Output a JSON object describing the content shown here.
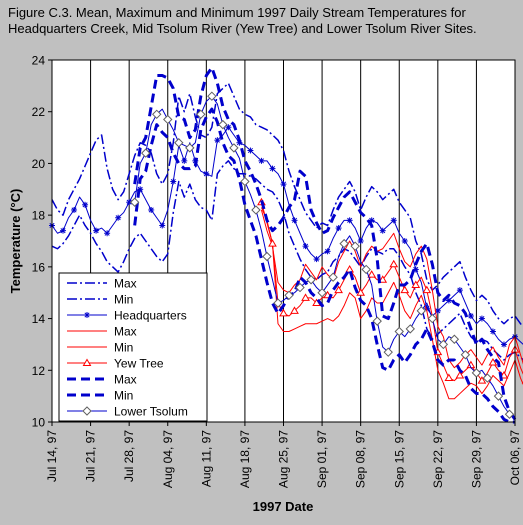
{
  "figure_title": "Figure C.3.  Mean, Maximum and Minimum 1997 Daily Stream Temperatures for Headquarters Creek, Mid Tsolum River (Yew Tree) and Lower Tsolum River Sites.",
  "chart_data": {
    "type": "line",
    "title": "Figure C.3.  Mean, Maximum and Minimum 1997 Daily Stream Temperatures for Headquarters Creek, Mid Tsolum River (Yew Tree) and Lower Tsolum River Sites.",
    "xlabel": "1997 Date",
    "ylabel": "Temperature (°C)",
    "x_tick_labels": [
      "Jul 14, 97",
      "Jul 21, 97",
      "Jul 28, 97",
      "Aug 04, 97",
      "Aug 11, 97",
      "Aug 18, 97",
      "Aug 25, 97",
      "Sep 01, 97",
      "Sep 08, 97",
      "Sep 15, 97",
      "Sep 22, 97",
      "Sep 29, 97",
      "Oct 06, 97"
    ],
    "y_ticks": [
      10,
      12,
      14,
      16,
      18,
      20,
      22,
      24
    ],
    "ylim": [
      10,
      24
    ],
    "xlim": [
      "Jul 14, 97",
      "Oct 06, 97"
    ],
    "grid": {
      "vertical": true,
      "horizontal": false
    },
    "legend_position": "bottom-left",
    "series": [
      {
        "name": "Max",
        "color": "#0000cc",
        "style": "dashdot",
        "width": 1.5,
        "marker": null,
        "x_start": 0,
        "values": [
          18.6,
          18.2,
          18.0,
          18.6,
          19.0,
          19.4,
          19.9,
          20.4,
          20.9,
          21.1,
          19.8,
          19.0,
          18.6,
          18.9,
          19.6,
          20.3,
          20.8,
          20.7,
          20.4,
          19.6,
          19.2,
          19.6,
          20.8,
          22.6,
          22.0,
          22.7,
          21.8,
          21.1,
          21.0,
          21.4,
          22.7,
          22.9,
          23.1,
          22.6,
          22.1,
          21.9,
          21.8,
          21.5,
          21.4,
          21.3,
          21.1,
          20.9,
          20.5,
          19.7,
          19.1,
          18.6,
          18.1,
          17.8,
          17.5,
          17.7,
          17.6,
          18.2,
          18.7,
          19.0,
          19.3,
          18.9,
          18.2,
          18.7,
          19.1,
          18.9,
          18.6,
          18.8,
          19.0,
          18.5,
          18.2,
          17.9,
          17.0,
          16.5,
          15.5,
          15.1,
          15.3,
          15.6,
          15.8,
          16.0,
          16.2,
          15.6,
          15.1,
          14.7,
          14.9,
          14.7,
          14.3,
          14.0,
          13.8,
          14.0,
          14.1,
          13.8,
          13.6,
          13.3,
          12.8
        ]
      },
      {
        "name": "Min",
        "color": "#0000cc",
        "style": "dashdot",
        "width": 1.5,
        "marker": null,
        "x_start": 0,
        "values": [
          16.8,
          16.7,
          16.9,
          17.2,
          17.6,
          18.0,
          17.6,
          17.3,
          16.9,
          16.6,
          16.2,
          16.0,
          15.8,
          16.2,
          16.7,
          17.1,
          17.3,
          17.0,
          16.7,
          16.4,
          16.2,
          16.5,
          18.1,
          19.3,
          18.7,
          19.2,
          18.6,
          18.3,
          18.2,
          17.8,
          19.6,
          19.9,
          20.1,
          19.8,
          19.6,
          19.6,
          19.5,
          19.4,
          19.2,
          19.0,
          18.9,
          18.6,
          18.1,
          17.3,
          16.8,
          16.3,
          15.9,
          15.6,
          15.5,
          15.7,
          15.8,
          16.2,
          16.4,
          16.7,
          16.6,
          16.3,
          16.0,
          16.4,
          16.7,
          16.6,
          16.5,
          16.7,
          16.7,
          16.4,
          16.0,
          15.7,
          15.0,
          14.5,
          13.6,
          13.2,
          13.4,
          13.6,
          13.8,
          14.0,
          14.2,
          13.7,
          13.3,
          13.1,
          13.2,
          13.1,
          12.8,
          12.6,
          12.4,
          12.6,
          12.7,
          12.5,
          12.3,
          12.1,
          11.7
        ]
      },
      {
        "name": "Headquarters",
        "color": "#0000cc",
        "style": "solid",
        "width": 1,
        "marker": "star",
        "x_start": 0,
        "values": [
          17.6,
          17.3,
          17.4,
          17.9,
          18.2,
          18.7,
          18.4,
          17.8,
          17.4,
          17.5,
          17.3,
          17.6,
          17.9,
          18.1,
          18.5,
          18.9,
          19.0,
          18.6,
          18.2,
          17.9,
          17.6,
          18.2,
          19.3,
          20.7,
          20.1,
          20.8,
          20.1,
          19.7,
          19.6,
          19.5,
          20.9,
          21.1,
          21.4,
          21.1,
          20.8,
          20.7,
          20.5,
          20.3,
          20.1,
          20.1,
          19.8,
          19.6,
          19.2,
          18.4,
          17.8,
          17.3,
          16.8,
          16.5,
          16.3,
          16.5,
          16.6,
          17.1,
          17.5,
          17.8,
          17.8,
          17.5,
          17.0,
          17.5,
          17.8,
          17.7,
          17.4,
          17.6,
          17.8,
          17.3,
          17.0,
          16.7,
          15.9,
          15.4,
          14.4,
          14.1,
          14.3,
          14.5,
          14.7,
          14.9,
          15.1,
          14.6,
          14.1,
          13.8,
          14.0,
          13.8,
          13.5,
          13.2,
          13.0,
          13.2,
          13.3,
          13.1,
          12.9,
          12.7,
          12.2
        ]
      },
      {
        "name": "Max",
        "color": "#ff0000",
        "style": "solid",
        "width": 1,
        "marker": null,
        "x_start": 38,
        "values": [
          18.2,
          17.4,
          16.8,
          15.4,
          15.1,
          15.0,
          15.3,
          15.5,
          16.1,
          15.8,
          15.5,
          16.0,
          15.7,
          15.5,
          16.2,
          16.6,
          17.0,
          16.6,
          16.0,
          16.5,
          16.8,
          16.6,
          16.7,
          17.0,
          17.3,
          16.7,
          16.2,
          16.0,
          16.5,
          16.8,
          16.3,
          15.1,
          13.7,
          13.3,
          12.4,
          12.1,
          12.3,
          12.6,
          12.8,
          12.5,
          12.2,
          12.6,
          12.9,
          12.5,
          12.2,
          13.0,
          13.3,
          12.6,
          11.9,
          11.9,
          11.5,
          11.5,
          11.3,
          11.2,
          11.0
        ]
      },
      {
        "name": "Min",
        "color": "#ff0000",
        "style": "solid",
        "width": 1,
        "marker": null,
        "x_start": 38,
        "values": [
          18.3,
          17.8,
          16.9,
          13.8,
          13.5,
          13.5,
          13.6,
          13.7,
          13.8,
          13.8,
          13.8,
          13.9,
          14.0,
          13.9,
          14.1,
          14.5,
          15.0,
          14.8,
          14.0,
          14.3,
          14.8,
          14.6,
          14.6,
          15.0,
          15.4,
          14.9,
          14.3,
          14.0,
          14.5,
          14.9,
          14.3,
          13.2,
          12.0,
          11.5,
          10.9,
          10.9,
          11.1,
          11.3,
          11.5,
          11.4,
          11.1,
          11.4,
          11.8,
          11.6,
          11.4,
          11.9,
          12.4,
          11.7,
          11.2,
          10.8,
          10.9,
          10.8,
          10.6,
          10.5,
          10.2
        ]
      },
      {
        "name": "Yew Tree",
        "color": "#ff0000",
        "style": "solid",
        "width": 1,
        "marker": "triangle",
        "x_start": 38,
        "values": [
          18.5,
          17.7,
          16.9,
          14.6,
          14.2,
          14.1,
          14.3,
          14.5,
          14.8,
          14.8,
          14.6,
          14.8,
          14.9,
          14.8,
          15.1,
          15.5,
          15.9,
          15.6,
          15.0,
          15.3,
          15.7,
          15.5,
          15.5,
          15.8,
          16.1,
          15.6,
          15.1,
          14.8,
          15.3,
          15.6,
          15.1,
          14.1,
          12.7,
          12.2,
          11.7,
          11.6,
          11.8,
          12.0,
          12.2,
          11.9,
          11.6,
          11.9,
          12.3,
          12.0,
          11.8,
          12.5,
          12.8,
          12.1,
          11.6,
          11.5,
          11.3,
          11.2,
          11.0,
          10.8,
          10.6
        ]
      },
      {
        "name": "Max",
        "color": "#0000cc",
        "style": "dashed-bold",
        "width": 3,
        "marker": null,
        "x_start": 15,
        "values": [
          19.2,
          20.6,
          21.0,
          22.2,
          23.4,
          23.4,
          23.3,
          22.9,
          21.8,
          21.7,
          21.0,
          21.3,
          22.6,
          23.4,
          23.7,
          23.1,
          22.2,
          21.7,
          21.5,
          20.9,
          20.1,
          19.7,
          19.2,
          18.6,
          17.8,
          17.4,
          17.6,
          17.9,
          18.3,
          18.6,
          19.7,
          19.5,
          18.2,
          17.7,
          17.3,
          17.4,
          17.9,
          18.3,
          18.7,
          18.9,
          18.5,
          18.1,
          17.9,
          17.6,
          16.3,
          14.1,
          14.0,
          14.6,
          15.3,
          15.3,
          15.5,
          16.1,
          16.6,
          16.9,
          16.1,
          15.0,
          14.7,
          14.9,
          14.6,
          14.5,
          14.2,
          13.6,
          13.0,
          13.2,
          12.8,
          12.5,
          12.3,
          11.0,
          10.4,
          10.1
        ]
      },
      {
        "name": "Min",
        "color": "#0000cc",
        "style": "dashed-bold",
        "width": 3,
        "marker": null,
        "x_start": 15,
        "values": [
          17.6,
          19.4,
          19.7,
          20.7,
          21.5,
          21.2,
          21.0,
          20.4,
          20.0,
          19.8,
          19.8,
          19.9,
          21.3,
          21.8,
          22.1,
          21.6,
          20.8,
          20.3,
          20.1,
          19.4,
          18.4,
          17.8,
          17.2,
          16.3,
          15.4,
          14.6,
          14.2,
          14.5,
          14.9,
          15.0,
          15.6,
          15.4,
          15.0,
          14.8,
          14.5,
          14.6,
          15.1,
          15.4,
          15.6,
          15.9,
          15.2,
          14.7,
          14.5,
          14.0,
          13.0,
          12.1,
          12.0,
          12.4,
          12.6,
          12.3,
          12.6,
          13.0,
          13.2,
          13.6,
          13.1,
          12.4,
          12.2,
          12.4,
          12.4,
          12.0,
          11.8,
          11.3,
          11.1,
          11.1,
          10.9,
          10.6,
          10.4,
          10.1,
          10.0,
          10.0
        ]
      },
      {
        "name": "Lower Tsolum",
        "color": "#0000cc",
        "style": "solid",
        "width": 1,
        "marker": "diamond",
        "x_start": 15,
        "values": [
          18.5,
          20.0,
          20.4,
          21.5,
          21.9,
          22.1,
          21.7,
          21.3,
          20.8,
          20.7,
          20.6,
          20.8,
          21.9,
          22.4,
          22.6,
          22.3,
          21.5,
          21.0,
          20.6,
          20.2,
          19.3,
          18.8,
          18.2,
          17.4,
          16.4,
          15.5,
          14.6,
          14.7,
          14.9,
          15.0,
          15.2,
          15.4,
          15.5,
          15.2,
          15.0,
          15.3,
          15.6,
          16.4,
          16.9,
          17.2,
          16.8,
          16.2,
          15.9,
          15.3,
          13.9,
          12.9,
          12.7,
          13.2,
          13.5,
          13.3,
          13.6,
          14.0,
          14.3,
          14.6,
          14.0,
          13.2,
          13.0,
          13.3,
          13.2,
          12.9,
          12.6,
          12.1,
          11.9,
          12.0,
          11.7,
          11.4,
          11.0,
          10.6,
          10.3,
          10.2
        ]
      }
    ],
    "legend": [
      {
        "label": "Max",
        "color": "#0000cc",
        "style": "dashdot",
        "width": 1.5,
        "marker": null
      },
      {
        "label": "Min",
        "color": "#0000cc",
        "style": "dashdot",
        "width": 1.5,
        "marker": null
      },
      {
        "label": "Headquarters",
        "color": "#0000cc",
        "style": "solid",
        "width": 1,
        "marker": "star"
      },
      {
        "label": "Max",
        "color": "#ff0000",
        "style": "solid",
        "width": 1,
        "marker": null
      },
      {
        "label": "Min",
        "color": "#ff0000",
        "style": "solid",
        "width": 1,
        "marker": null
      },
      {
        "label": "Yew Tree",
        "color": "#ff0000",
        "style": "solid",
        "width": 1,
        "marker": "triangle"
      },
      {
        "label": "Max",
        "color": "#0000cc",
        "style": "dashed-bold",
        "width": 3,
        "marker": null
      },
      {
        "label": "Min",
        "color": "#0000cc",
        "style": "dashed-bold",
        "width": 3,
        "marker": null
      },
      {
        "label": "Lower Tsolum",
        "color": "#0000cc",
        "style": "solid",
        "width": 1,
        "marker": "diamond"
      }
    ]
  }
}
